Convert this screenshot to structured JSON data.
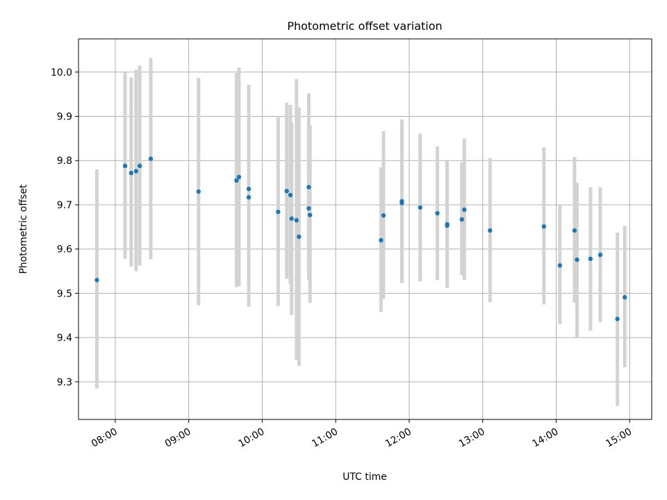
{
  "chart_data": {
    "type": "scatter",
    "title": "Photometric offset variation",
    "xlabel": "UTC time",
    "ylabel": "Photometric offset",
    "x_unit": "time (HH:MM, UTC)",
    "xlim": [
      "07:30",
      "15:18"
    ],
    "ylim": [
      9.215,
      10.075
    ],
    "x_ticks": [
      "08:00",
      "09:00",
      "10:00",
      "11:00",
      "12:00",
      "13:00",
      "14:00",
      "15:00"
    ],
    "y_ticks": [
      9.3,
      9.4,
      9.5,
      9.6,
      9.7,
      9.8,
      9.9,
      10.0
    ],
    "grid": true,
    "legend": "none",
    "colors": {
      "point": "#1f77b4",
      "errorbar": "#d3d3d3",
      "grid": "#b0b0b0"
    },
    "points": [
      {
        "x": "07:45",
        "y": 9.53,
        "low": 9.285,
        "high": 9.78
      },
      {
        "x": "08:08",
        "y": 9.788,
        "low": 9.578,
        "high": 9.999
      },
      {
        "x": "08:13",
        "y": 9.772,
        "low": 9.56,
        "high": 9.988
      },
      {
        "x": "08:17",
        "y": 9.776,
        "low": 9.55,
        "high": 10.005
      },
      {
        "x": "08:20",
        "y": 9.788,
        "low": 9.563,
        "high": 10.015
      },
      {
        "x": "08:29",
        "y": 9.804,
        "low": 9.577,
        "high": 10.032
      },
      {
        "x": "09:08",
        "y": 9.73,
        "low": 9.473,
        "high": 9.987
      },
      {
        "x": "09:39",
        "y": 9.755,
        "low": 9.514,
        "high": 9.998
      },
      {
        "x": "09:41",
        "y": 9.763,
        "low": 9.516,
        "high": 10.01
      },
      {
        "x": "09:49",
        "y": 9.736,
        "low": 9.47,
        "high": 9.971
      },
      {
        "x": "09:49",
        "y": 9.717,
        "low": 9.48,
        "high": 9.82
      },
      {
        "x": "10:13",
        "y": 9.684,
        "low": 9.471,
        "high": 9.898
      },
      {
        "x": "10:20",
        "y": 9.731,
        "low": 9.533,
        "high": 9.931
      },
      {
        "x": "10:23",
        "y": 9.722,
        "low": 9.52,
        "high": 9.926
      },
      {
        "x": "10:24",
        "y": 9.669,
        "low": 9.451,
        "high": 9.886
      },
      {
        "x": "10:28",
        "y": 9.665,
        "low": 9.35,
        "high": 9.984
      },
      {
        "x": "10:30",
        "y": 9.628,
        "low": 9.336,
        "high": 9.92
      },
      {
        "x": "10:38",
        "y": 9.74,
        "low": 9.555,
        "high": 9.952
      },
      {
        "x": "10:38",
        "y": 9.692,
        "low": 9.53,
        "high": 9.878
      },
      {
        "x": "10:39",
        "y": 9.677,
        "low": 9.478,
        "high": 9.88
      },
      {
        "x": "11:37",
        "y": 9.62,
        "low": 9.458,
        "high": 9.785
      },
      {
        "x": "11:39",
        "y": 9.676,
        "low": 9.487,
        "high": 9.866
      },
      {
        "x": "11:54",
        "y": 9.708,
        "low": 9.523,
        "high": 9.893
      },
      {
        "x": "11:54",
        "y": 9.704,
        "low": 9.53,
        "high": 9.88
      },
      {
        "x": "12:09",
        "y": 9.694,
        "low": 9.527,
        "high": 9.861
      },
      {
        "x": "12:23",
        "y": 9.681,
        "low": 9.53,
        "high": 9.832
      },
      {
        "x": "12:31",
        "y": 9.653,
        "low": 9.512,
        "high": 9.795
      },
      {
        "x": "12:31",
        "y": 9.656,
        "low": 9.52,
        "high": 9.799
      },
      {
        "x": "12:43",
        "y": 9.667,
        "low": 9.541,
        "high": 9.796
      },
      {
        "x": "12:45",
        "y": 9.689,
        "low": 9.53,
        "high": 9.85
      },
      {
        "x": "13:06",
        "y": 9.642,
        "low": 9.48,
        "high": 9.806
      },
      {
        "x": "13:50",
        "y": 9.651,
        "low": 9.475,
        "high": 9.83
      },
      {
        "x": "14:03",
        "y": 9.563,
        "low": 9.43,
        "high": 9.7
      },
      {
        "x": "14:15",
        "y": 9.642,
        "low": 9.479,
        "high": 9.808
      },
      {
        "x": "14:17",
        "y": 9.576,
        "low": 9.4,
        "high": 9.75
      },
      {
        "x": "14:28",
        "y": 9.578,
        "low": 9.416,
        "high": 9.74
      },
      {
        "x": "14:36",
        "y": 9.587,
        "low": 9.435,
        "high": 9.74
      },
      {
        "x": "14:50",
        "y": 9.442,
        "low": 9.246,
        "high": 9.637
      },
      {
        "x": "14:56",
        "y": 9.491,
        "low": 9.333,
        "high": 9.652
      }
    ]
  }
}
